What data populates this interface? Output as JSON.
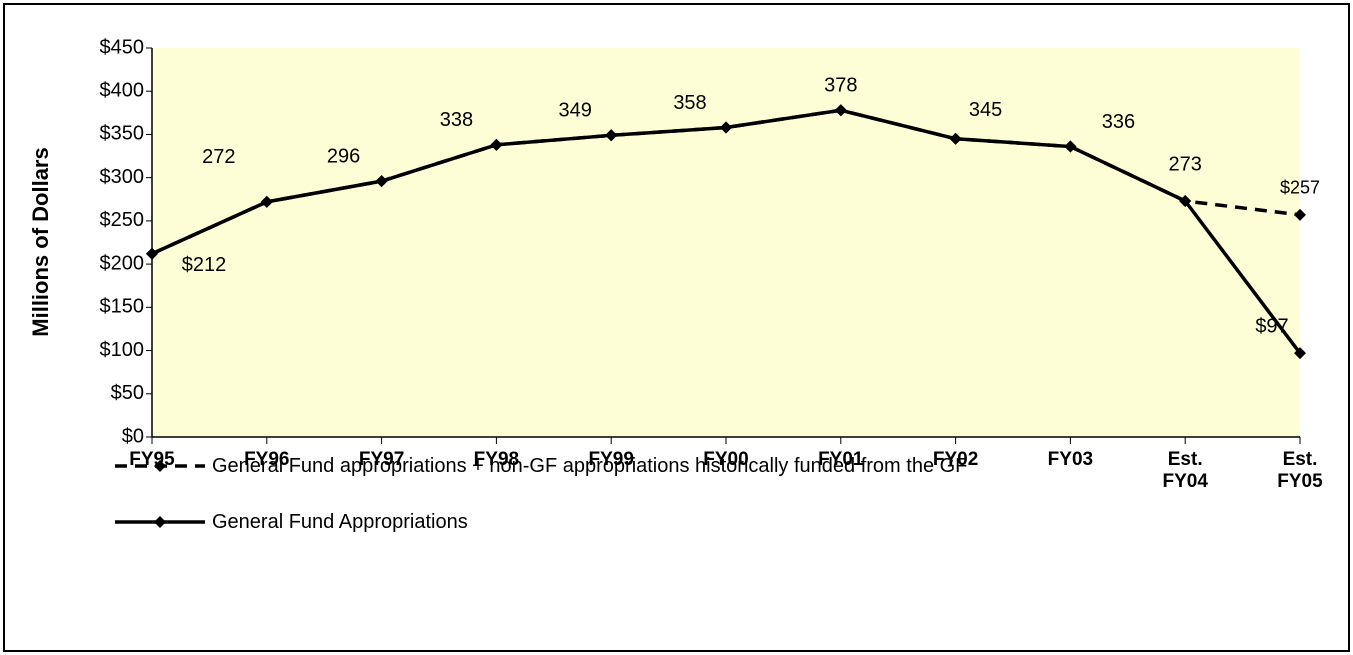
{
  "chart_data": {
    "type": "line",
    "ylabel": "Millions of Dollars",
    "categories": [
      "FY95",
      "FY96",
      "FY97",
      "FY98",
      "FY99",
      "FY00",
      "FY01",
      "FY02",
      "FY03",
      "Est. FY04",
      "Est. FY05"
    ],
    "series": [
      {
        "name": "General Fund appropriations + non-GF appropriations historically funded from the GF",
        "color": "#000000",
        "dash": true,
        "values": [
          212,
          272,
          296,
          338,
          349,
          358,
          378,
          345,
          336,
          273,
          257
        ],
        "value_labels": [
          null,
          null,
          null,
          null,
          null,
          null,
          null,
          null,
          null,
          null,
          "$257"
        ]
      },
      {
        "name": "General Fund Appropriations",
        "color": "#000000",
        "dash": false,
        "values": [
          212,
          272,
          296,
          338,
          349,
          358,
          378,
          345,
          336,
          273,
          97
        ],
        "value_labels": [
          "$212",
          "272",
          "296",
          "338",
          "349",
          "358",
          "378",
          "345",
          "336",
          "273",
          "$97"
        ]
      }
    ],
    "ylim": [
      0,
      450
    ],
    "yticks": [
      {
        "value": 0,
        "label": "$0"
      },
      {
        "value": 50,
        "label": "$50"
      },
      {
        "value": 100,
        "label": "$100"
      },
      {
        "value": 150,
        "label": "$150"
      },
      {
        "value": 200,
        "label": "$200"
      },
      {
        "value": 250,
        "label": "$250"
      },
      {
        "value": 300,
        "label": "$300"
      },
      {
        "value": 350,
        "label": "$350"
      },
      {
        "value": 400,
        "label": "$400"
      },
      {
        "value": 450,
        "label": "$450"
      }
    ],
    "plot_background": "#fdfdd6",
    "legend": "bottom"
  }
}
